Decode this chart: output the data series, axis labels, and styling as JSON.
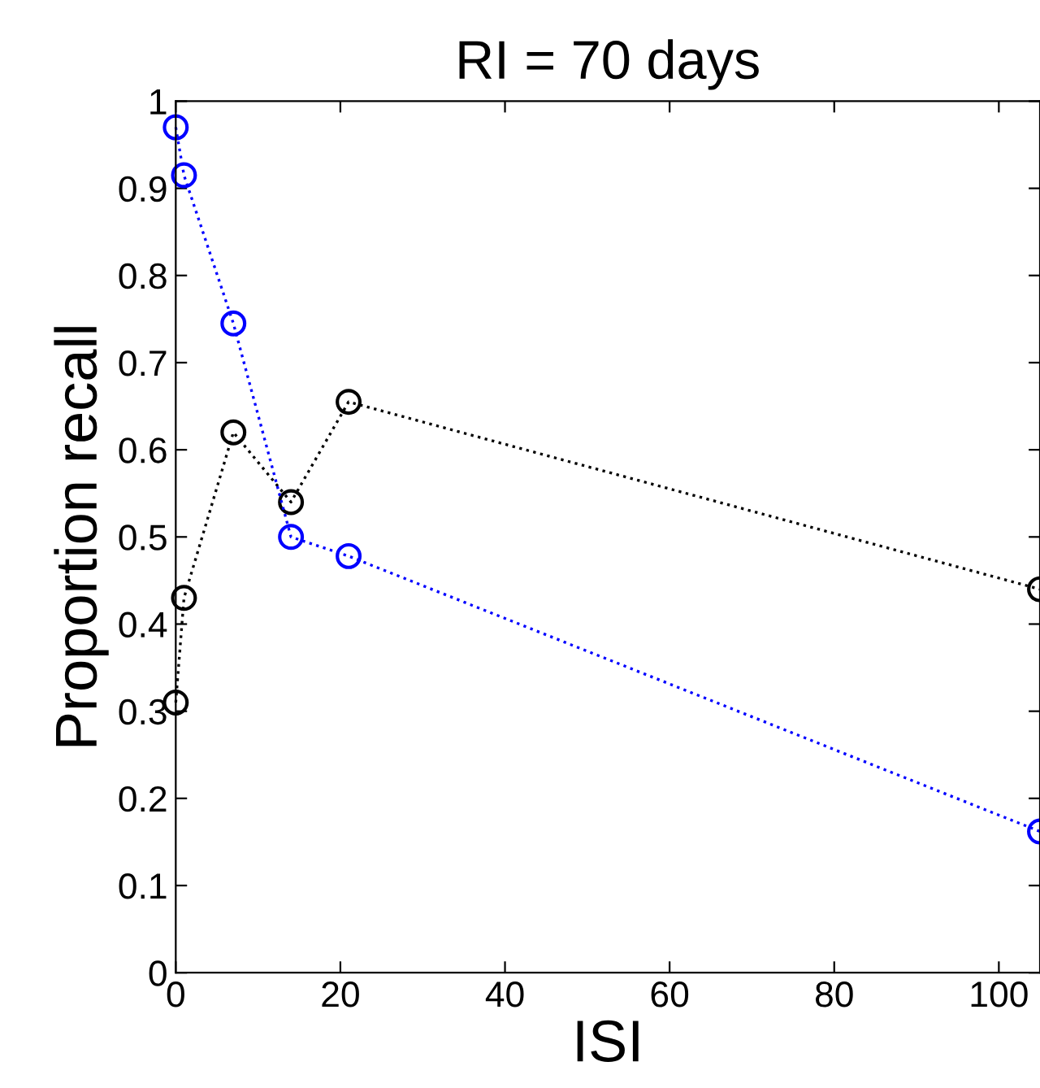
{
  "chart_data": {
    "type": "line",
    "title": "RI = 70 days",
    "xlabel": "ISI",
    "ylabel": "Proportion recall",
    "series": [
      {
        "color": "#000000",
        "x": [
          0,
          1,
          7,
          14,
          21,
          105
        ],
        "values": [
          0.31,
          0.43,
          0.62,
          0.54,
          0.655,
          0.44
        ]
      },
      {
        "color": "#0000ff",
        "x": [
          0,
          1,
          7,
          14,
          21,
          105
        ],
        "values": [
          0.97,
          0.915,
          0.745,
          0.5,
          0.478,
          0.162
        ]
      }
    ],
    "xlim": [
      0,
      105
    ],
    "ylim": [
      0,
      1
    ],
    "xticks": [
      0,
      20,
      40,
      60,
      80,
      100
    ],
    "yticks": [
      0,
      0.1,
      0.2,
      0.3,
      0.4,
      0.5,
      0.6,
      0.7,
      0.8,
      0.9,
      1
    ],
    "marker": "circle",
    "line_style": "dotted",
    "grid": false,
    "legend": false
  }
}
